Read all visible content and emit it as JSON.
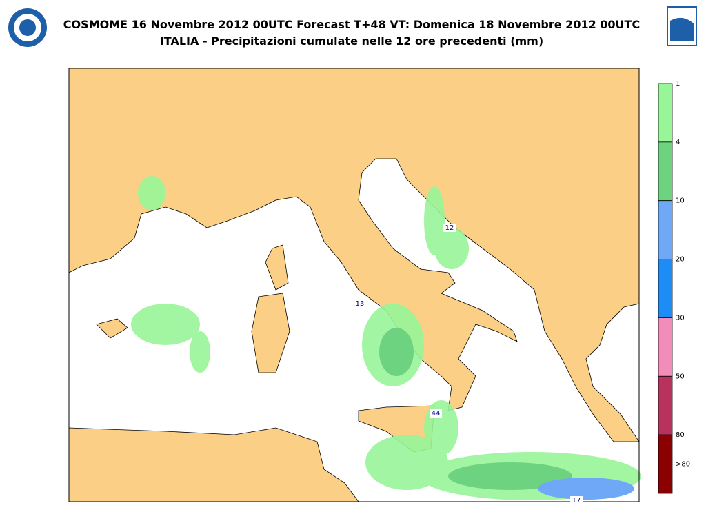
{
  "header": {
    "title": "COSMOME 16 Novembre 2012 00UTC Forecast T+48 VT: Domenica 18 Novembre 2012 00UTC",
    "subtitle": "ITALIA - Precipitazioni cumulate nelle 12 ore precedenti (mm)"
  },
  "legend": {
    "bands": [
      {
        "label": "1",
        "color": "#98f598"
      },
      {
        "label": "4",
        "color": "#6ed380"
      },
      {
        "label": "10",
        "color": "#6ea8f7"
      },
      {
        "label": "20",
        "color": "#1e8cf5"
      },
      {
        "label": "30",
        "color": "#f28cb8"
      },
      {
        "label": "50",
        "color": "#b8325e"
      },
      {
        "label": "80",
        "color": "#8b0000"
      }
    ],
    "last_label": ">80"
  },
  "map": {
    "labels": [
      "12",
      "13",
      "44",
      "17"
    ]
  }
}
